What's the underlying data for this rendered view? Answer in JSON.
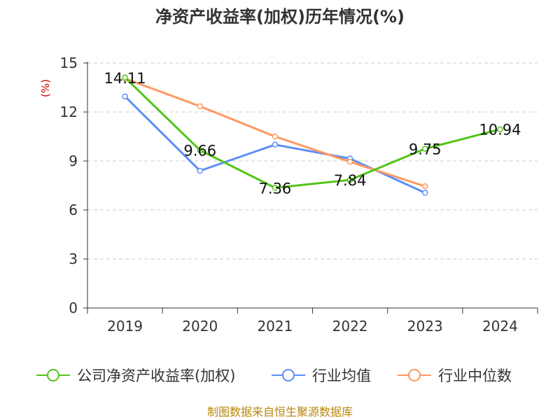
{
  "chart_data": {
    "type": "line",
    "title": "净资产收益率(加权)历年情况(%)",
    "ylabel": "(%)",
    "categories": [
      "2019",
      "2020",
      "2021",
      "2022",
      "2023",
      "2024"
    ],
    "ylim": [
      0,
      15
    ],
    "yticks": [
      0,
      3,
      6,
      9,
      12,
      15
    ],
    "grid": true,
    "legend_position": "bottom",
    "series": [
      {
        "name": "公司净资产收益率(加权)",
        "color": "#52c41a",
        "values": [
          14.11,
          9.66,
          7.36,
          7.84,
          9.75,
          10.94
        ],
        "labels": [
          "14.11",
          "9.66",
          "7.36",
          "7.84",
          "9.75",
          "10.94"
        ]
      },
      {
        "name": "行业均值",
        "color": "#5b8ff9",
        "values": [
          12.95,
          8.4,
          10.0,
          9.15,
          7.05,
          null
        ]
      },
      {
        "name": "行业中位数",
        "color": "#ff9860",
        "values": [
          14.05,
          12.35,
          10.5,
          8.95,
          7.45,
          null
        ]
      }
    ],
    "source": "制图数据来自恒生聚源数据库"
  }
}
